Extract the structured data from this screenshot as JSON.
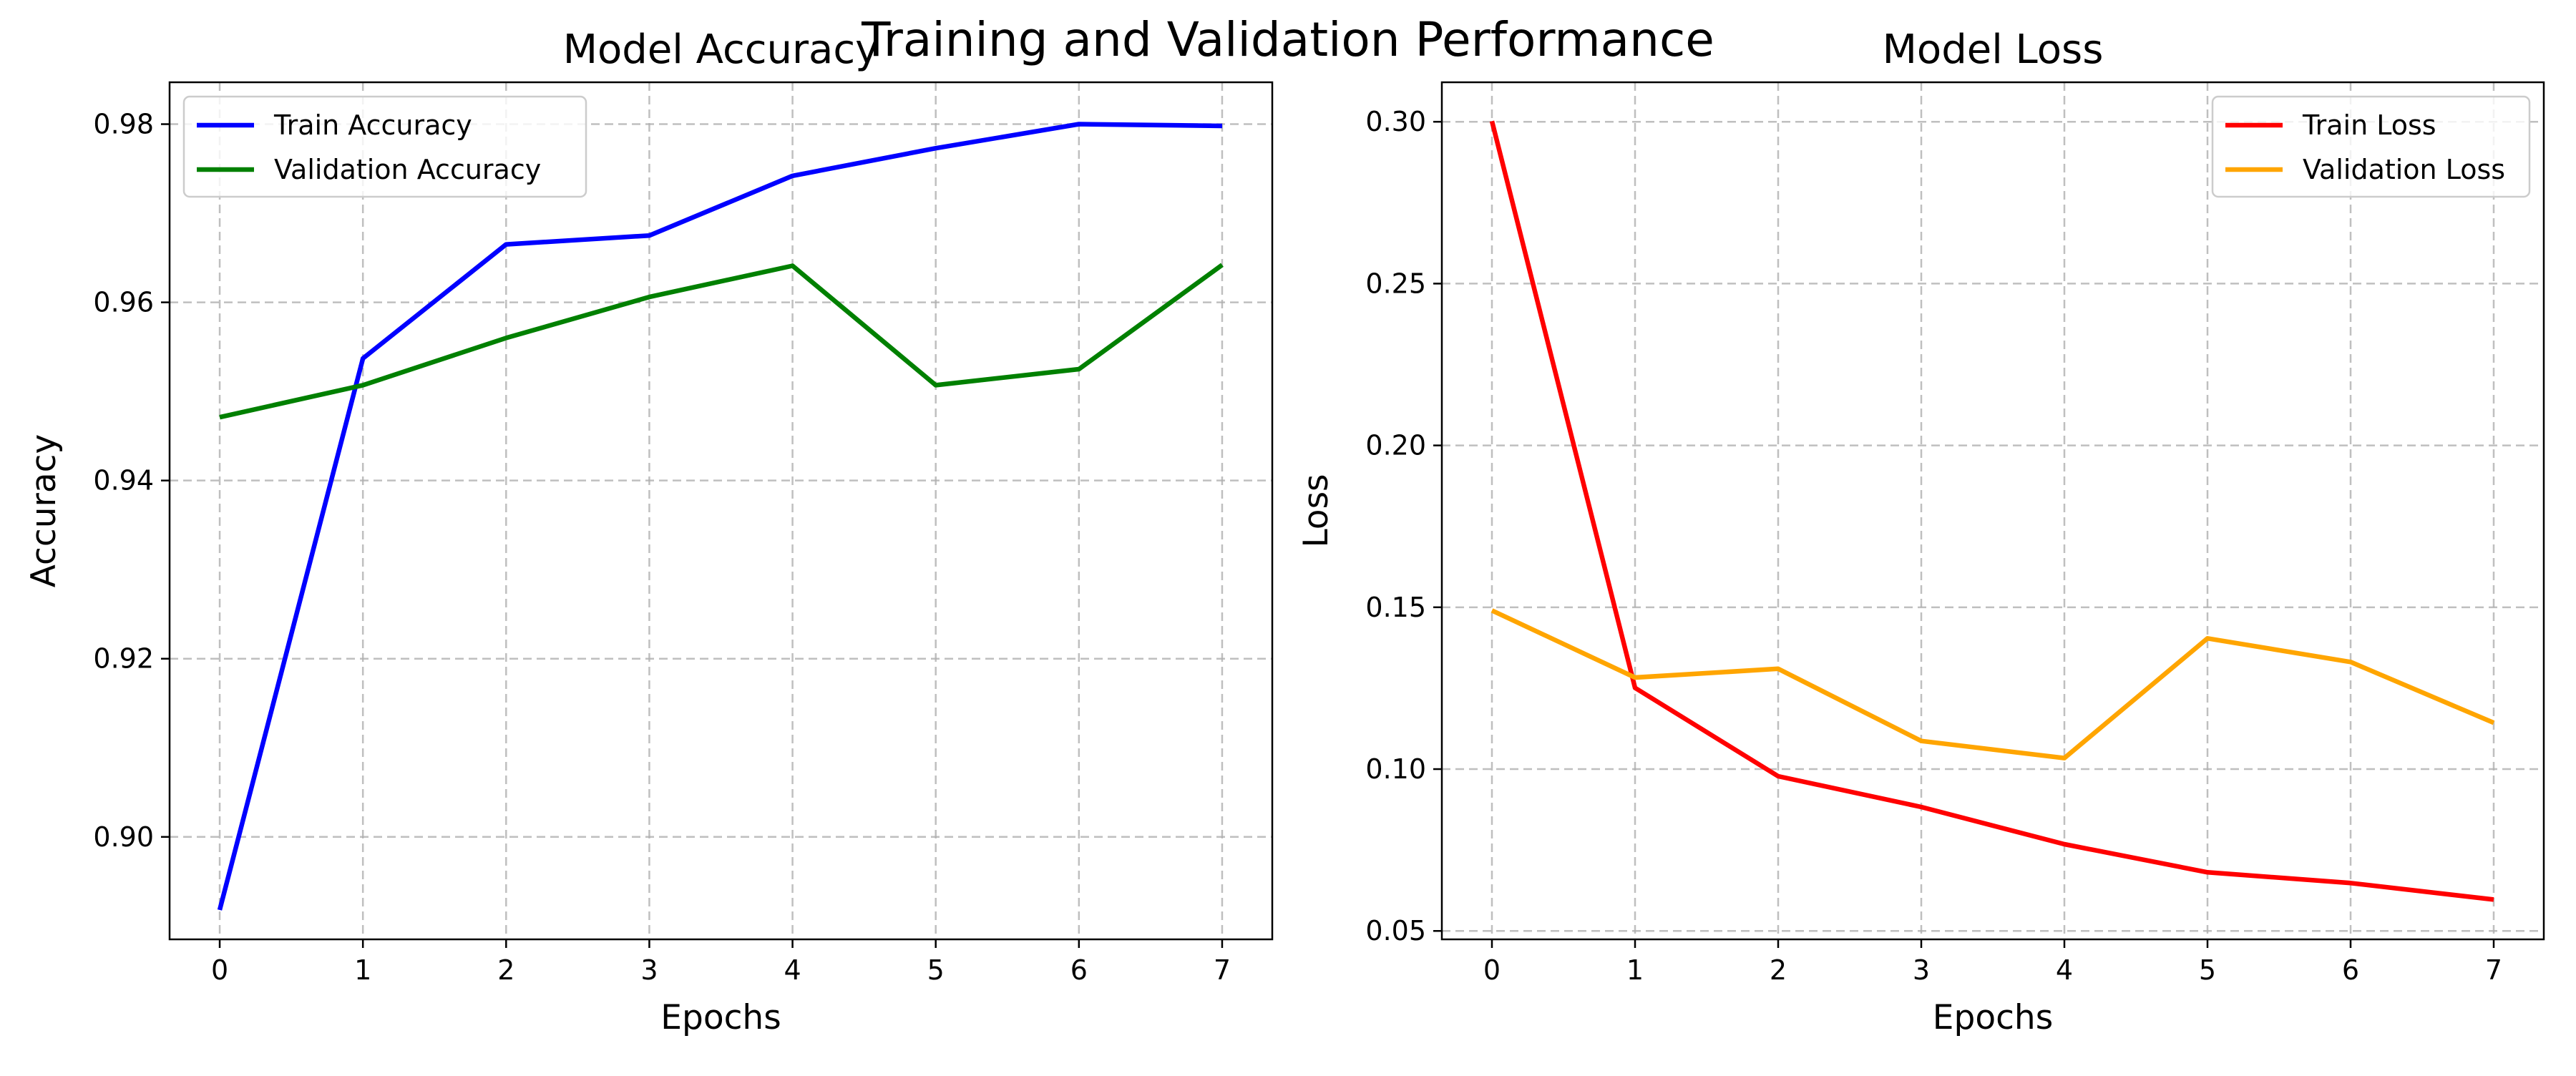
{
  "figure": {
    "suptitle": "Training and Validation Performance"
  },
  "chart_data": [
    {
      "type": "line",
      "title": "Model Accuracy",
      "xlabel": "Epochs",
      "ylabel": "Accuracy",
      "x": [
        0,
        1,
        2,
        3,
        4,
        5,
        6,
        7
      ],
      "xlim": [
        -0.35,
        7.35
      ],
      "ylim": [
        0.8885,
        0.9847
      ],
      "xticks": [
        0,
        1,
        2,
        3,
        4,
        5,
        6,
        7
      ],
      "yticks": [
        0.9,
        0.92,
        0.94,
        0.96,
        0.98
      ],
      "ytick_labels": [
        "0.90",
        "0.92",
        "0.94",
        "0.96",
        "0.98"
      ],
      "grid": true,
      "legend_position": "upper-left",
      "series": [
        {
          "name": "Train Accuracy",
          "color": "#0000ff",
          "values": [
            0.8918,
            0.9537,
            0.9665,
            0.9675,
            0.9742,
            0.9773,
            0.98,
            0.9798
          ]
        },
        {
          "name": "Validation Accuracy",
          "color": "#008000",
          "values": [
            0.9471,
            0.9507,
            0.956,
            0.9606,
            0.9641,
            0.9507,
            0.9525,
            0.9642
          ]
        }
      ]
    },
    {
      "type": "line",
      "title": "Model Loss",
      "xlabel": "Epochs",
      "ylabel": "Loss",
      "x": [
        0,
        1,
        2,
        3,
        4,
        5,
        6,
        7
      ],
      "xlim": [
        -0.35,
        7.35
      ],
      "ylim": [
        0.0474,
        0.3122
      ],
      "xticks": [
        0,
        1,
        2,
        3,
        4,
        5,
        6,
        7
      ],
      "yticks": [
        0.05,
        0.1,
        0.15,
        0.2,
        0.25,
        0.3
      ],
      "ytick_labels": [
        "0.05",
        "0.10",
        "0.15",
        "0.20",
        "0.25",
        "0.30"
      ],
      "grid": true,
      "legend_position": "upper-right",
      "series": [
        {
          "name": "Train Loss",
          "color": "#ff0000",
          "values": [
            0.3002,
            0.1251,
            0.0978,
            0.0883,
            0.0768,
            0.0681,
            0.0648,
            0.0597
          ]
        },
        {
          "name": "Validation Loss",
          "color": "#ffa500",
          "values": [
            0.149,
            0.1283,
            0.131,
            0.1087,
            0.1034,
            0.1404,
            0.1331,
            0.1143
          ]
        }
      ]
    }
  ]
}
